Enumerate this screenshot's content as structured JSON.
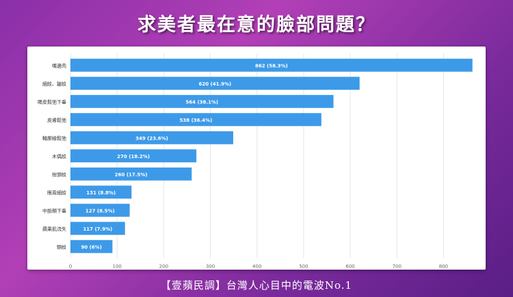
{
  "title": "求美者最在意的臉部問題？",
  "footer": "【壹蘋民調】台灣人心目中的電波No.1",
  "colors": {
    "bar": "#3d9ae8",
    "bar_label": "#ffffff",
    "grid": "#e6e6e6",
    "tick": "#666666"
  },
  "chart_data": {
    "type": "bar",
    "orientation": "horizontal",
    "categories": [
      "嘴邊肉",
      "細紋、皺紋",
      "眼皮鬆弛下垂",
      "皮膚鬆弛",
      "輪廓線鬆弛",
      "木偶紋",
      "抬頭紋",
      "眼周細紋",
      "中臉頰下垂",
      "蘋果肌流失",
      "頸紋"
    ],
    "values": [
      862,
      620,
      564,
      538,
      349,
      270,
      260,
      131,
      127,
      117,
      90
    ],
    "data_labels": [
      "862 (58.3%)",
      "620 (41.9%)",
      "564 (38.1%)",
      "538 (36.4%)",
      "349 (23.6%)",
      "270 (18.2%)",
      "260 (17.5%)",
      "131 (8.8%)",
      "127 (8.5%)",
      "117 (7.9%)",
      "90 (6%)"
    ],
    "xlim": [
      0,
      880
    ],
    "xticks": [
      0,
      100,
      200,
      300,
      400,
      500,
      600,
      700,
      800
    ],
    "grid": true,
    "legend": "none"
  }
}
